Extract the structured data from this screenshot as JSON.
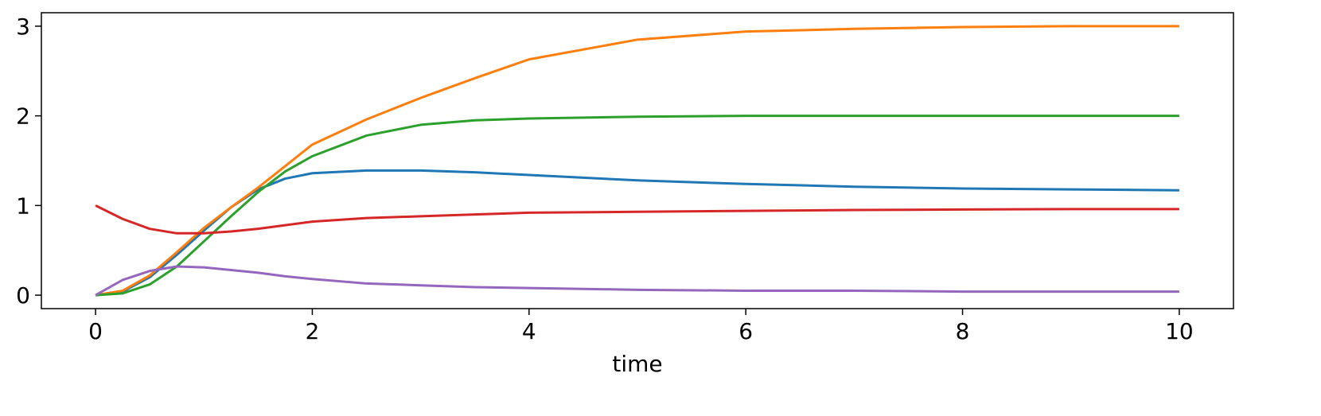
{
  "chart_data": {
    "type": "line",
    "xlabel": "time",
    "x": [
      0,
      0.25,
      0.5,
      0.75,
      1,
      1.25,
      1.5,
      1.75,
      2,
      2.5,
      3,
      3.5,
      4,
      5,
      6,
      7,
      8,
      9,
      10
    ],
    "series": [
      {
        "color": "#1f77b4",
        "values": [
          0,
          0.04,
          0.2,
          0.45,
          0.72,
          0.98,
          1.18,
          1.3,
          1.36,
          1.39,
          1.39,
          1.37,
          1.34,
          1.28,
          1.24,
          1.21,
          1.19,
          1.18,
          1.17
        ]
      },
      {
        "color": "#ff7f0e",
        "values": [
          0,
          0.05,
          0.22,
          0.48,
          0.75,
          0.98,
          1.2,
          1.44,
          1.68,
          1.96,
          2.2,
          2.42,
          2.63,
          2.85,
          2.94,
          2.97,
          2.99,
          3.0,
          3.0
        ]
      },
      {
        "color": "#2ca02c",
        "values": [
          0,
          0.02,
          0.12,
          0.32,
          0.6,
          0.88,
          1.15,
          1.38,
          1.55,
          1.78,
          1.9,
          1.95,
          1.97,
          1.99,
          2.0,
          2.0,
          2.0,
          2.0,
          2.0
        ]
      },
      {
        "color": "#d62728",
        "values": [
          1.0,
          0.85,
          0.74,
          0.69,
          0.69,
          0.71,
          0.74,
          0.78,
          0.82,
          0.86,
          0.88,
          0.9,
          0.92,
          0.93,
          0.94,
          0.95,
          0.955,
          0.96,
          0.96
        ]
      },
      {
        "color": "#9467bd",
        "values": [
          0,
          0.17,
          0.27,
          0.32,
          0.31,
          0.28,
          0.25,
          0.21,
          0.18,
          0.13,
          0.11,
          0.09,
          0.08,
          0.06,
          0.05,
          0.05,
          0.04,
          0.04,
          0.04
        ]
      }
    ],
    "xlim": [
      -0.5,
      10.5
    ],
    "xticks": [
      0,
      2,
      4,
      6,
      8,
      10
    ],
    "ylim": [
      -0.15,
      3.15
    ],
    "yticks": [
      0,
      1,
      2,
      3
    ]
  }
}
